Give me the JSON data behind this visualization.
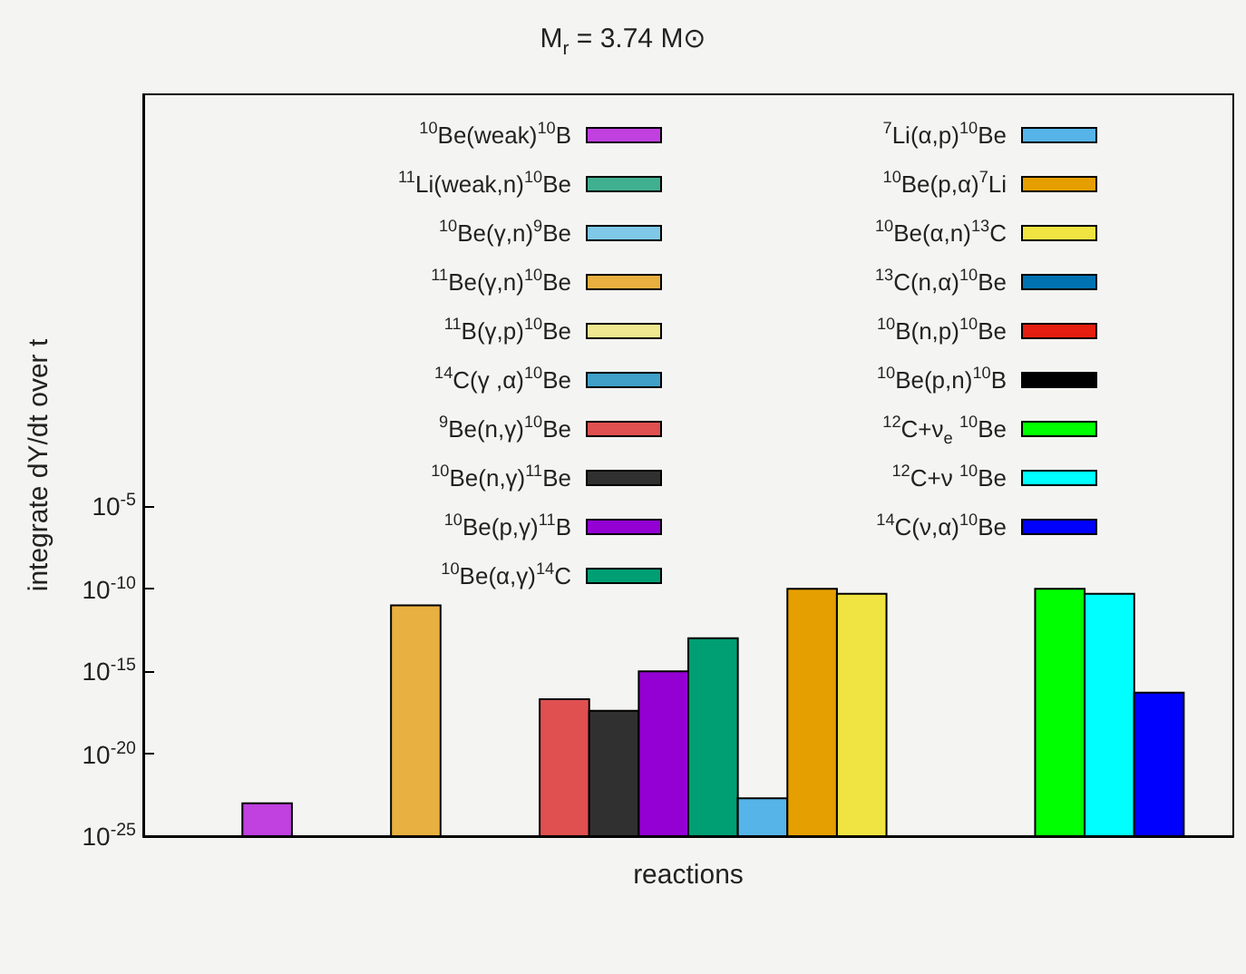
{
  "chart_data": {
    "type": "bar",
    "title": "M$_{r}$ = 3.74 M⊙",
    "xlabel": "reactions",
    "ylabel": "integrate dY/dt over t",
    "categories": [
      null,
      null,
      null,
      null,
      null,
      null,
      null,
      null,
      null,
      null,
      null,
      null,
      null,
      null,
      null,
      null,
      null,
      null,
      null,
      null,
      null,
      null
    ],
    "log": "y",
    "ylim": [
      1e-25,
      1e+20
    ],
    "yticks": [
      {
        "value": 1e-25,
        "label": "10$^{-25}$"
      },
      {
        "value": 1e-20,
        "label": "10$^{-20}$"
      },
      {
        "value": 1e-15,
        "label": "10$^{-15}$"
      },
      {
        "value": 1e-10,
        "label": "10$^{-10}$"
      },
      {
        "value": 1e-05,
        "label": "10$^{-5}$"
      }
    ],
    "legend": "top",
    "grid": false,
    "series": [
      {
        "name": "$^{10}$Be(weak)$^{10}$B",
        "color": "#c040e0",
        "values": [
          null,
          null,
          1e-23,
          null,
          null,
          null,
          null,
          null,
          null,
          null,
          null,
          null,
          null,
          null,
          null,
          null,
          null,
          null,
          null,
          null,
          null,
          null
        ]
      },
      {
        "name": "$^{11}$Li(weak,n)$^{10}$Be",
        "color": "#40b090",
        "values": [
          null,
          null,
          null,
          null,
          null,
          null,
          null,
          null,
          null,
          null,
          null,
          null,
          null,
          null,
          null,
          null,
          null,
          null,
          null,
          null,
          null,
          null
        ]
      },
      {
        "name": "$^{10}$Be(γ,n)$^{9}$Be",
        "color": "#80c8e8",
        "values": [
          null,
          null,
          null,
          null,
          null,
          null,
          null,
          null,
          null,
          null,
          null,
          null,
          null,
          null,
          null,
          null,
          null,
          null,
          null,
          null,
          null,
          null
        ]
      },
      {
        "name": "$^{11}$Be(γ,n)$^{10}$Be",
        "color": "#e8b040",
        "values": [
          null,
          null,
          null,
          null,
          null,
          1e-11,
          null,
          null,
          null,
          null,
          null,
          null,
          null,
          null,
          null,
          null,
          null,
          null,
          null,
          null,
          null,
          null
        ]
      },
      {
        "name": "$^{11}$B(γ,p)$^{10}$Be",
        "color": "#f0e890",
        "values": [
          null,
          null,
          null,
          null,
          null,
          null,
          null,
          null,
          null,
          null,
          null,
          null,
          null,
          null,
          null,
          null,
          null,
          null,
          null,
          null,
          null,
          null
        ]
      },
      {
        "name": "$^{14}$C(γ ,α)$^{10}$Be",
        "color": "#40a0c8",
        "values": [
          null,
          null,
          null,
          null,
          null,
          null,
          null,
          null,
          null,
          null,
          null,
          null,
          null,
          null,
          null,
          null,
          null,
          null,
          null,
          null,
          null,
          null
        ]
      },
      {
        "name": "$^{9}$Be(n,γ)$^{10}$Be",
        "color": "#e05050",
        "values": [
          null,
          null,
          null,
          null,
          null,
          null,
          null,
          null,
          2e-17,
          null,
          null,
          null,
          null,
          null,
          null,
          null,
          null,
          null,
          null,
          null,
          null,
          null
        ]
      },
      {
        "name": "$^{10}$Be(n,γ)$^{11}$Be",
        "color": "#303030",
        "values": [
          null,
          null,
          null,
          null,
          null,
          null,
          null,
          null,
          null,
          4e-18,
          null,
          null,
          null,
          null,
          null,
          null,
          null,
          null,
          null,
          null,
          null,
          null
        ]
      },
      {
        "name": "$^{10}$Be(p,γ)$^{11}$B",
        "color": "#9400d3",
        "values": [
          null,
          null,
          null,
          null,
          null,
          null,
          null,
          null,
          null,
          null,
          1e-15,
          null,
          null,
          null,
          null,
          null,
          null,
          null,
          null,
          null,
          null,
          null
        ]
      },
      {
        "name": "$^{10}$Be(α,γ)$^{14}$C",
        "color": "#009e73",
        "values": [
          null,
          null,
          null,
          null,
          null,
          null,
          null,
          null,
          null,
          null,
          null,
          1e-13,
          null,
          null,
          null,
          null,
          null,
          null,
          null,
          null,
          null,
          null
        ]
      },
      {
        "name": "$^{7}$Li(α,p)$^{10}$Be",
        "color": "#56b4e9",
        "values": [
          null,
          null,
          null,
          null,
          null,
          null,
          null,
          null,
          null,
          null,
          null,
          null,
          2e-23,
          null,
          null,
          null,
          null,
          null,
          null,
          null,
          null,
          null
        ]
      },
      {
        "name": "$^{10}$Be(p,α)$^{7}$Li",
        "color": "#e69f00",
        "values": [
          null,
          null,
          null,
          null,
          null,
          null,
          null,
          null,
          null,
          null,
          null,
          null,
          null,
          1e-10,
          null,
          null,
          null,
          null,
          null,
          null,
          null,
          null
        ]
      },
      {
        "name": "$^{10}$Be(α,n)$^{13}$C",
        "color": "#f0e442",
        "values": [
          null,
          null,
          null,
          null,
          null,
          null,
          null,
          null,
          null,
          null,
          null,
          null,
          null,
          null,
          5e-11,
          null,
          null,
          null,
          null,
          null,
          null,
          null
        ]
      },
      {
        "name": "$^{13}$C(n,α)$^{10}$Be",
        "color": "#0072b2",
        "values": [
          null,
          null,
          null,
          null,
          null,
          null,
          null,
          null,
          null,
          null,
          null,
          null,
          null,
          null,
          null,
          null,
          null,
          null,
          null,
          null,
          null,
          null
        ]
      },
      {
        "name": "$^{10}$B(n,p)$^{10}$Be",
        "color": "#e51e10",
        "values": [
          null,
          null,
          null,
          null,
          null,
          null,
          null,
          null,
          null,
          null,
          null,
          null,
          null,
          null,
          null,
          null,
          null,
          null,
          null,
          null,
          null,
          null
        ]
      },
      {
        "name": "$^{10}$Be(p,n)$^{10}$B",
        "color": "#000000",
        "values": [
          null,
          null,
          null,
          null,
          null,
          null,
          null,
          null,
          null,
          null,
          null,
          null,
          null,
          null,
          null,
          null,
          null,
          null,
          null,
          null,
          null,
          null
        ]
      },
      {
        "name": "$^{12}$C+ν$_{e}$ $^{10}$Be",
        "color": "#00ff00",
        "values": [
          null,
          null,
          null,
          null,
          null,
          null,
          null,
          null,
          null,
          null,
          null,
          null,
          null,
          null,
          null,
          null,
          null,
          null,
          1e-10,
          null,
          null,
          null
        ]
      },
      {
        "name": "$^{12}$C+ν $^{10}$Be",
        "color": "#00ffff",
        "values": [
          null,
          null,
          null,
          null,
          null,
          null,
          null,
          null,
          null,
          null,
          null,
          null,
          null,
          null,
          null,
          null,
          null,
          null,
          null,
          5e-11,
          null,
          null
        ]
      },
      {
        "name": "$^{14}$C(ν,α)$^{10}$Be",
        "color": "#0000ff",
        "values": [
          null,
          null,
          null,
          null,
          null,
          null,
          null,
          null,
          null,
          null,
          null,
          null,
          null,
          null,
          null,
          null,
          null,
          null,
          null,
          null,
          5e-17,
          null
        ]
      }
    ]
  }
}
